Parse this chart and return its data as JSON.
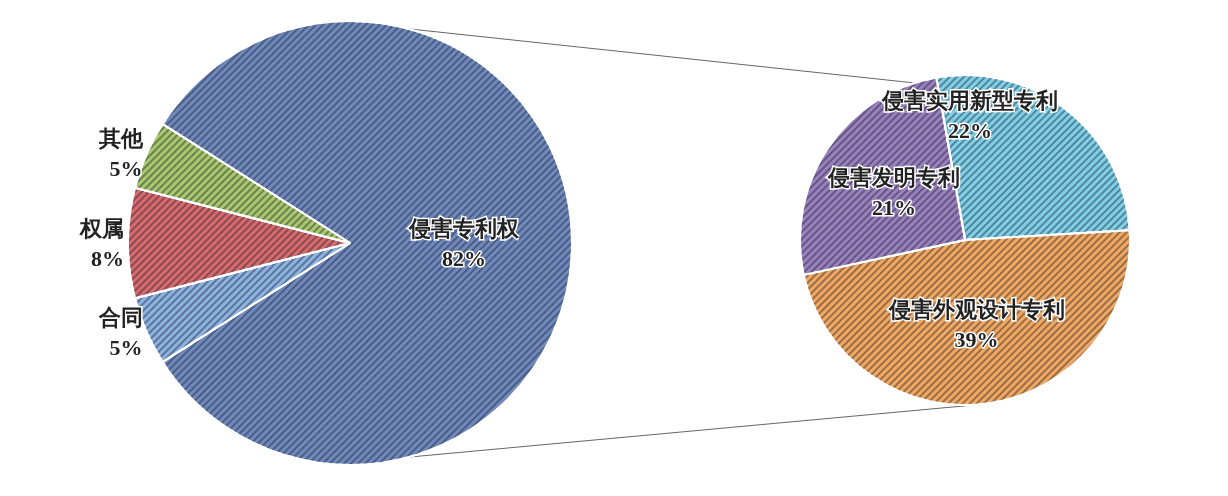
{
  "chart_data": [
    {
      "type": "pie",
      "categories": [
        "侵害专利权",
        "合同",
        "权属",
        "其他"
      ],
      "values": [
        82,
        5,
        8,
        5
      ],
      "colors": [
        "#7089bd",
        "#8db3e2",
        "#d9696a",
        "#a9c86a"
      ],
      "value_labels": [
        "82%",
        "5%",
        "8%",
        "5%"
      ]
    },
    {
      "type": "pie",
      "categories": [
        "侵害实用新型专利",
        "侵害外观设计专利",
        "侵害发明专利"
      ],
      "values": [
        22,
        39,
        21
      ],
      "colors": [
        "#7fd0e6",
        "#f4a85e",
        "#9a80bd"
      ],
      "value_labels": [
        "22%",
        "39%",
        "21%"
      ]
    }
  ]
}
